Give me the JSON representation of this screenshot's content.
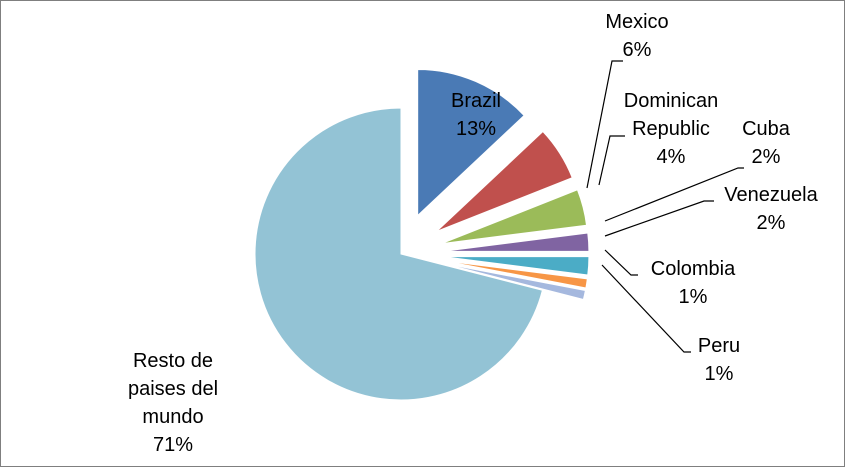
{
  "chart_data": {
    "type": "pie",
    "title": "",
    "legend": "none",
    "slices": [
      {
        "label_lines": [
          "Brazil",
          "13%"
        ],
        "value": 13,
        "color": "#4a7ab5",
        "exploded": true
      },
      {
        "label_lines": [
          "Mexico",
          "6%"
        ],
        "value": 6,
        "color": "#c0504d",
        "exploded": true
      },
      {
        "label_lines": [
          "Dominican",
          "Republic",
          "4%"
        ],
        "value": 4,
        "color": "#9bbb59",
        "exploded": true
      },
      {
        "label_lines": [
          "Cuba",
          "2%"
        ],
        "value": 2,
        "color": "#8064a2",
        "exploded": true
      },
      {
        "label_lines": [
          "Venezuela",
          "2%"
        ],
        "value": 2,
        "color": "#4bacc6",
        "exploded": true
      },
      {
        "label_lines": [
          "Colombia",
          "1%"
        ],
        "value": 1,
        "color": "#f79646",
        "exploded": true
      },
      {
        "label_lines": [
          "Peru",
          "1%"
        ],
        "value": 1,
        "color": "#a5b8de",
        "exploded": true
      },
      {
        "label_lines": [
          "Resto de",
          "paises del",
          "mundo",
          "71%"
        ],
        "value": 71,
        "color": "#93c3d5",
        "exploded": false
      }
    ]
  }
}
